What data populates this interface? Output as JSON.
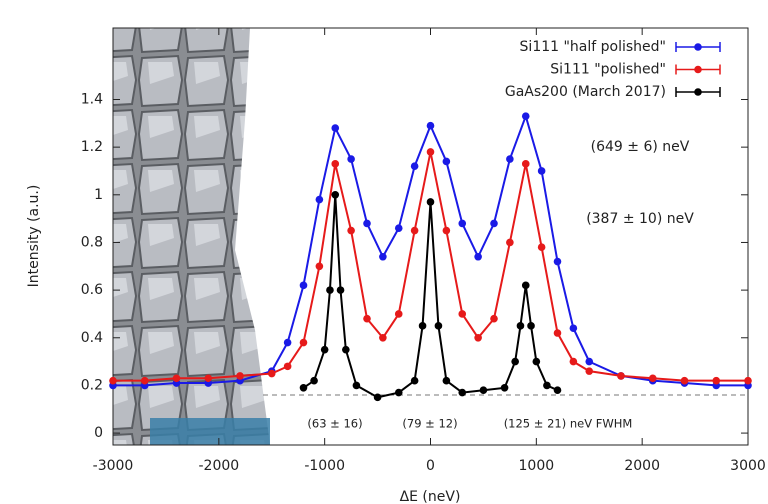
{
  "chart_data": {
    "type": "scatter",
    "xlabel": "ΔE (neV)",
    "ylabel": "Intensity (a.u.)",
    "xlim": [
      -3000,
      3000
    ],
    "xticks": [
      -3000,
      -2000,
      -1000,
      0,
      1000,
      2000,
      3000
    ],
    "ylim": [
      -0.05,
      1.7
    ],
    "yticks": [
      0,
      0.2,
      0.4,
      0.6,
      0.8,
      1,
      1.2,
      1.4
    ],
    "grid": false,
    "legend": "upper right",
    "reference_line": 0.16,
    "series": [
      {
        "name": "Si111 \"half polished\"",
        "color": "#1a1ae6",
        "x": [
          -3000,
          -2700,
          -2400,
          -2100,
          -1800,
          -1500,
          -1350,
          -1200,
          -1050,
          -900,
          -750,
          -600,
          -450,
          -300,
          -150,
          0,
          150,
          300,
          450,
          600,
          750,
          900,
          1050,
          1200,
          1350,
          1500,
          1800,
          2100,
          2400,
          2700,
          3000
        ],
        "values": [
          0.2,
          0.2,
          0.21,
          0.21,
          0.22,
          0.26,
          0.38,
          0.62,
          0.98,
          1.28,
          1.15,
          0.88,
          0.74,
          0.86,
          1.12,
          1.29,
          1.14,
          0.88,
          0.74,
          0.88,
          1.15,
          1.33,
          1.1,
          0.72,
          0.44,
          0.3,
          0.24,
          0.22,
          0.21,
          0.2,
          0.2
        ]
      },
      {
        "name": "Si111 \"polished\"",
        "color": "#e61a1a",
        "x": [
          -3000,
          -2700,
          -2400,
          -2100,
          -1800,
          -1500,
          -1350,
          -1200,
          -1050,
          -900,
          -750,
          -600,
          -450,
          -300,
          -150,
          0,
          150,
          300,
          450,
          600,
          750,
          900,
          1050,
          1200,
          1350,
          1500,
          1800,
          2100,
          2400,
          2700,
          3000
        ],
        "values": [
          0.22,
          0.22,
          0.23,
          0.23,
          0.24,
          0.25,
          0.28,
          0.38,
          0.7,
          1.13,
          0.85,
          0.48,
          0.4,
          0.5,
          0.85,
          1.18,
          0.85,
          0.5,
          0.4,
          0.48,
          0.8,
          1.13,
          0.78,
          0.42,
          0.3,
          0.26,
          0.24,
          0.23,
          0.22,
          0.22,
          0.22
        ]
      },
      {
        "name": "GaAs200 (March 2017)",
        "color": "#000000",
        "x": [
          -1200,
          -1100,
          -1000,
          -950,
          -900,
          -850,
          -800,
          -700,
          -500,
          -300,
          -150,
          -75,
          0,
          75,
          150,
          300,
          500,
          700,
          800,
          850,
          900,
          950,
          1000,
          1100,
          1200
        ],
        "values": [
          0.19,
          0.22,
          0.35,
          0.6,
          1.0,
          0.6,
          0.35,
          0.2,
          0.15,
          0.17,
          0.22,
          0.45,
          0.97,
          0.45,
          0.22,
          0.17,
          0.18,
          0.19,
          0.3,
          0.45,
          0.62,
          0.45,
          0.3,
          0.2,
          0.18
        ]
      }
    ],
    "annotations": [
      {
        "text": "(649 ± 6) neV",
        "color": "#1a1ae6"
      },
      {
        "text": "(387 ± 10) neV",
        "color": "#e61a1a"
      },
      {
        "text": "(63 ± 16)",
        "color": "#222222"
      },
      {
        "text": "(79 ± 12)",
        "color": "#222222"
      },
      {
        "text": "(125 ± 21) neV FWHM",
        "color": "#222222"
      }
    ]
  }
}
